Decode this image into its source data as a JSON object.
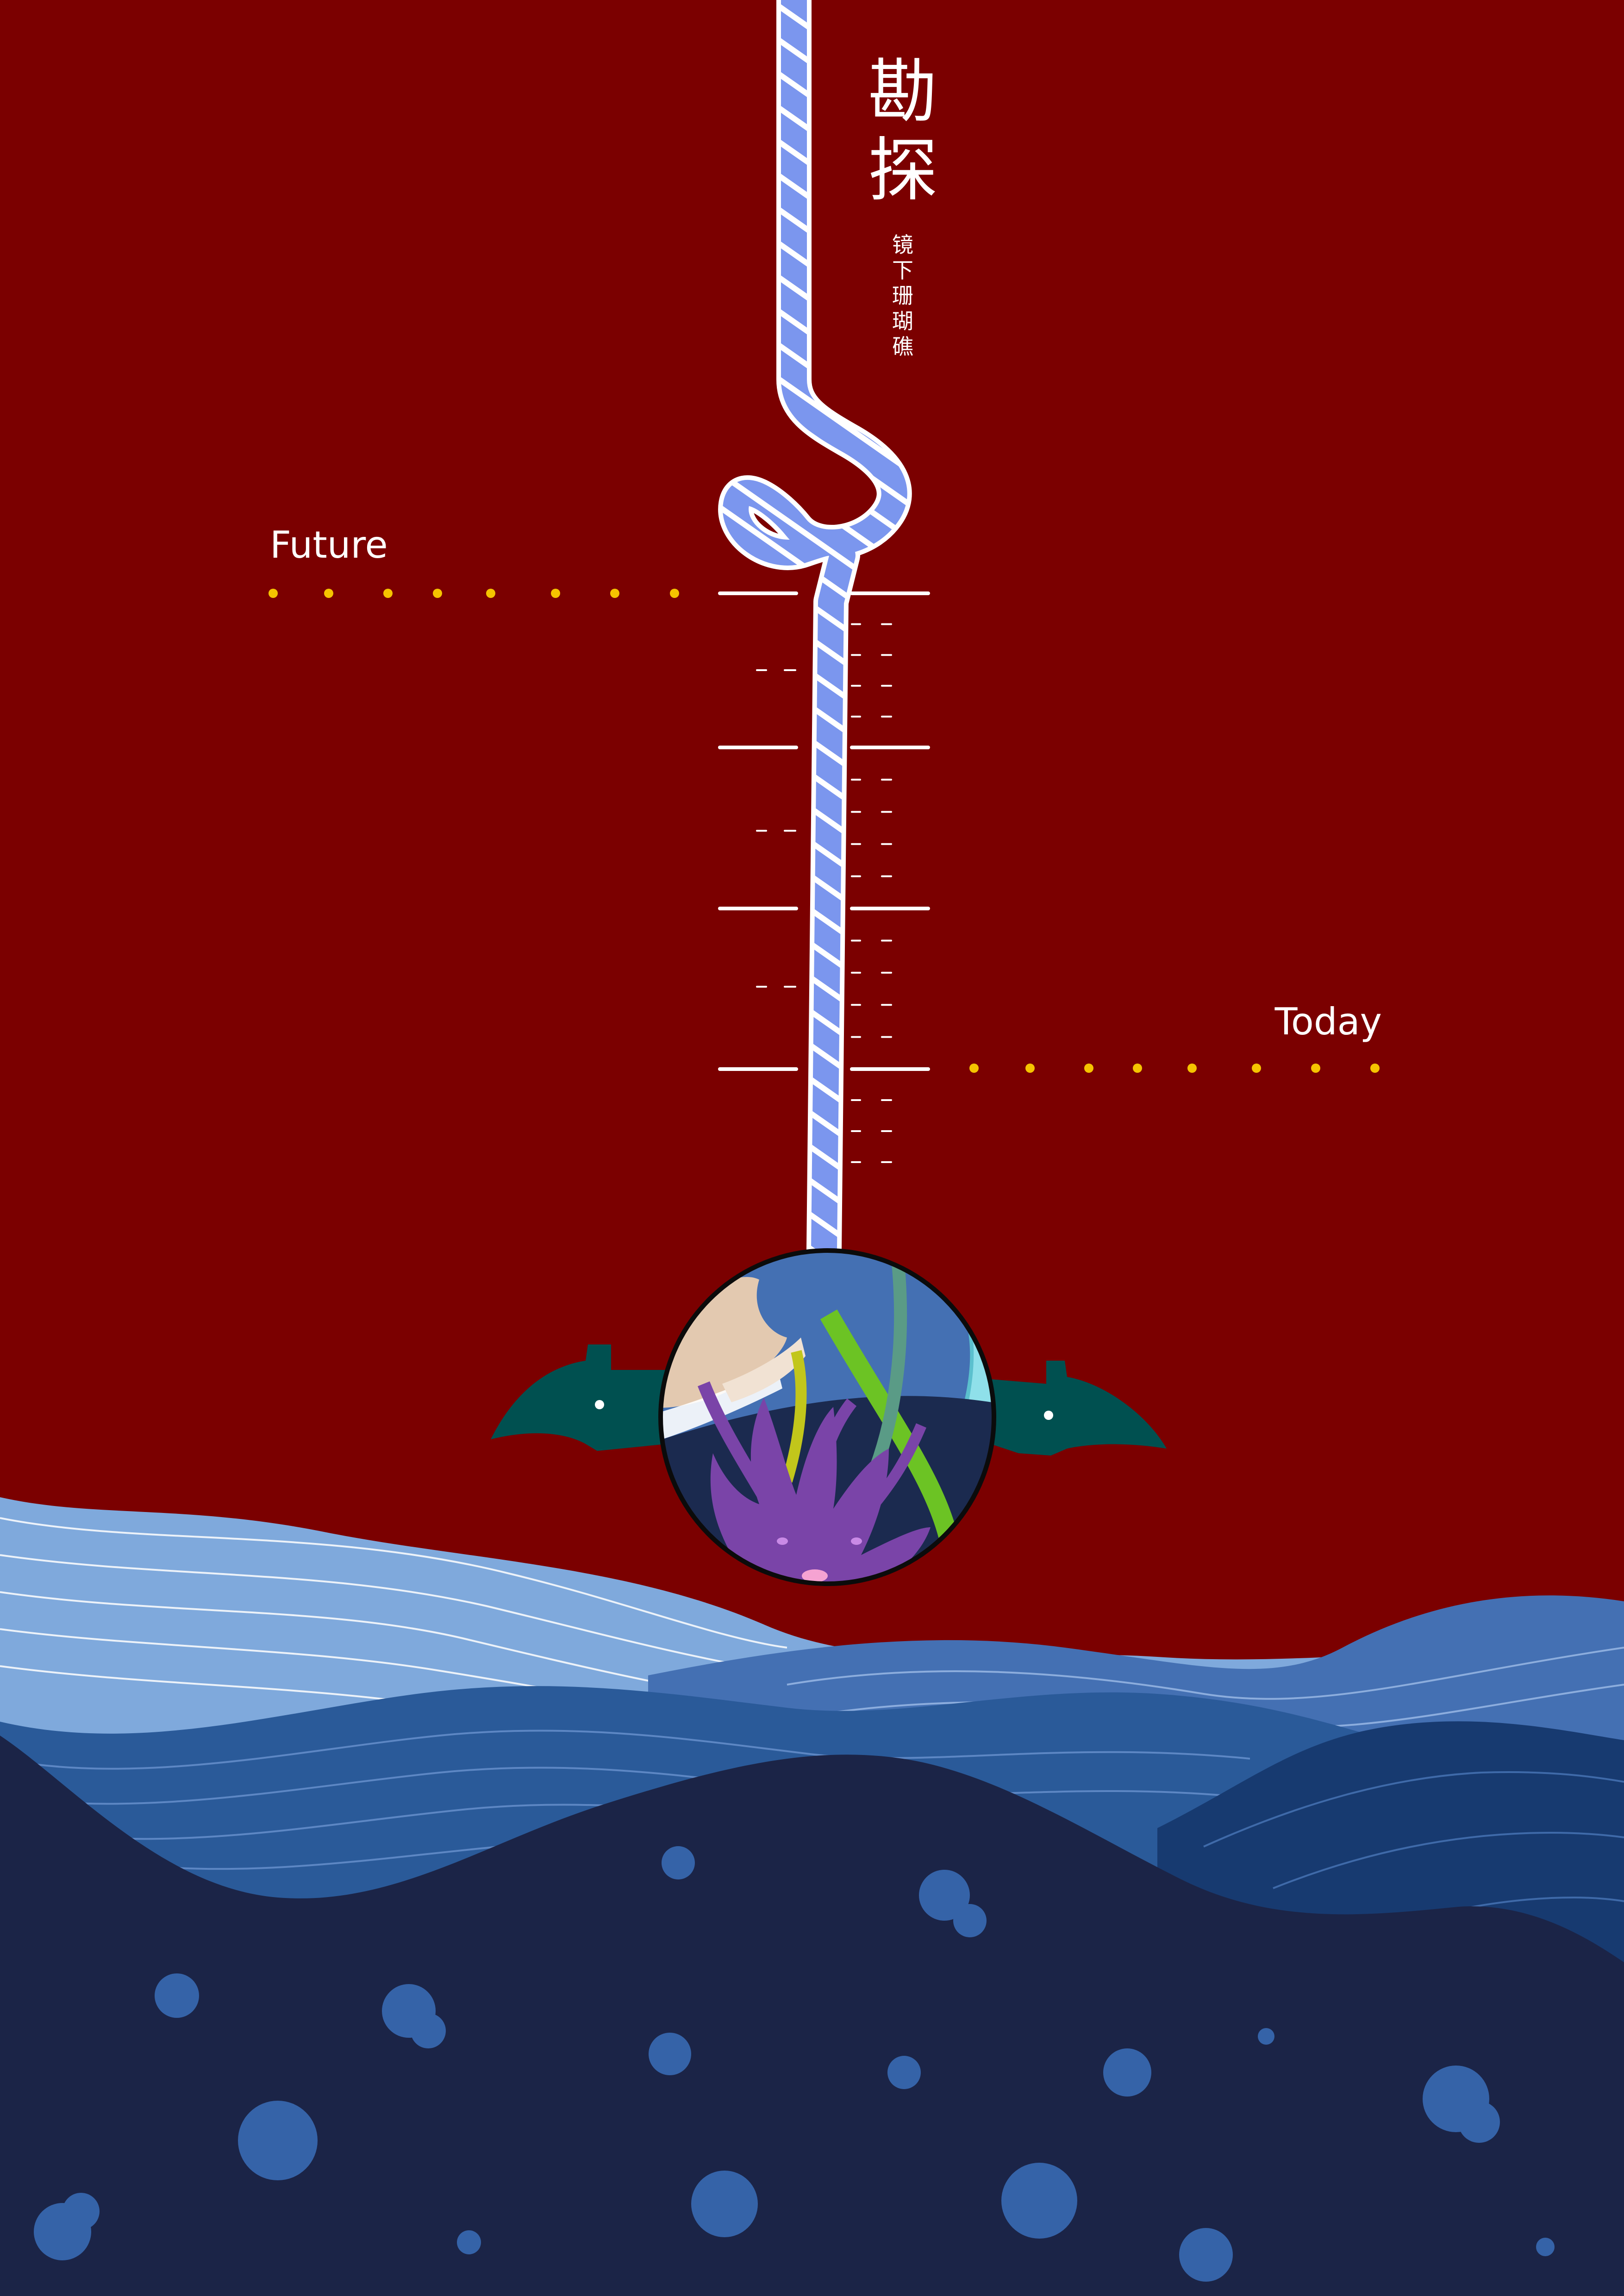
{
  "poster": {
    "title_chars": [
      "勘",
      "探"
    ],
    "subtitle_chars": [
      "镜",
      "下",
      "珊",
      "瑚",
      "礁"
    ],
    "label_future": "Future",
    "label_today": "Today"
  },
  "colors": {
    "background": "#7b0000",
    "rope": "#7b96ee",
    "rope_stripe": "#ffffff",
    "dots": "#f5c400",
    "scale_marks": "#ffffff",
    "wave_light": "#7fa9dc",
    "wave_mid": "#4470b3",
    "wave_dark": "#2a5a99",
    "wave_deep": "#173a70",
    "sea_floor": "#1b2447",
    "bubble": "#3563a8",
    "fin": "#005050",
    "coral": "#7a44a8"
  },
  "icons": {
    "lens": "coral-reef-lens-icon",
    "fins": "fin-icon",
    "rope": "rope-icon"
  }
}
